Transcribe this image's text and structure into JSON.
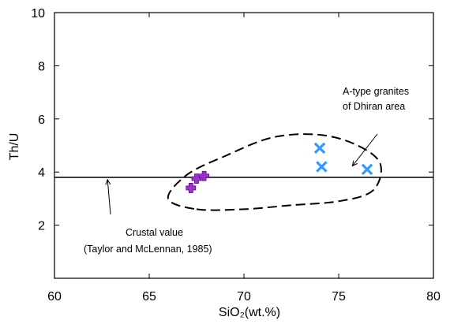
{
  "chart_data": {
    "type": "scatter",
    "xlabel": "SiO₂(wt.%)",
    "ylabel": "Th/U",
    "xlim": [
      60,
      80
    ],
    "ylim": [
      0,
      10
    ],
    "xticks": [
      60,
      65,
      70,
      75,
      80
    ],
    "yticks": [
      2,
      4,
      6,
      8,
      10
    ],
    "grid": false,
    "reference_line": {
      "y": 3.8
    },
    "series": [
      {
        "marker": "plus",
        "color": "#9933cc",
        "points": [
          [
            67.2,
            3.4
          ],
          [
            67.5,
            3.75
          ],
          [
            67.9,
            3.85
          ]
        ]
      },
      {
        "marker": "x",
        "color": "#3399ff",
        "points": [
          [
            74.0,
            4.9
          ],
          [
            74.1,
            4.2
          ],
          [
            76.5,
            4.1
          ]
        ]
      }
    ],
    "field_outline": [
      [
        67.5,
        2.6
      ],
      [
        70,
        2.6
      ],
      [
        72.5,
        2.75
      ],
      [
        75.0,
        2.9
      ],
      [
        76.8,
        3.3
      ],
      [
        77.2,
        4.3
      ],
      [
        76.0,
        5.0
      ],
      [
        74.0,
        5.4
      ],
      [
        71.5,
        5.3
      ],
      [
        69.0,
        4.6
      ],
      [
        67.0,
        3.9
      ],
      [
        66.0,
        3.0
      ]
    ],
    "annotations": [
      {
        "id": "crustal",
        "lines": [
          "Crustal value",
          "(Taylor and McLennan, 1985)"
        ],
        "points_to": [
          62.8,
          3.8
        ]
      },
      {
        "id": "atype",
        "lines": [
          "A-type granites",
          "of Dhiran area"
        ],
        "points_to": [
          75.6,
          4.2
        ]
      }
    ]
  }
}
